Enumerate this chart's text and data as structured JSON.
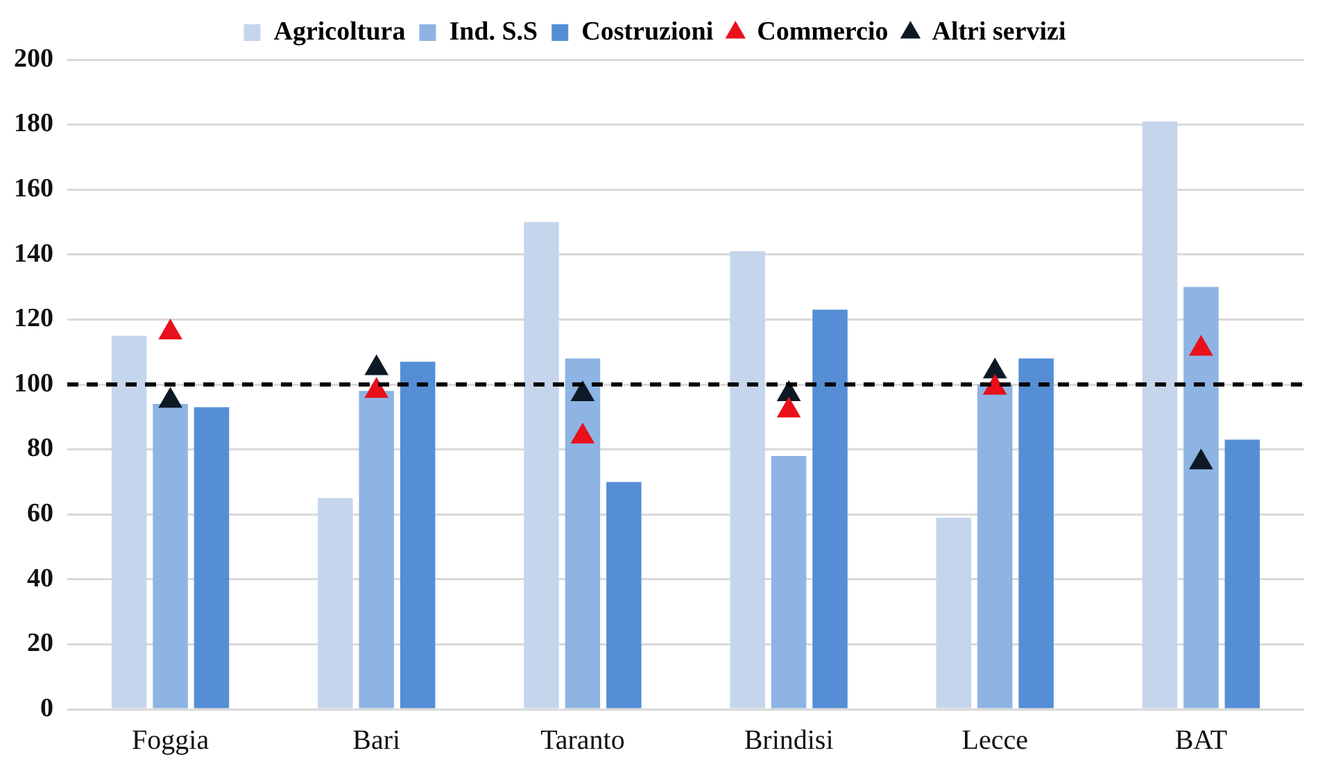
{
  "chart_data": {
    "type": "bar",
    "categories": [
      "Foggia",
      "Bari",
      "Taranto",
      "Brindisi",
      "Lecce",
      "BAT"
    ],
    "series": [
      {
        "name": "Agricoltura",
        "color": "#c5d5ec",
        "values": [
          115,
          65,
          150,
          141,
          59,
          181
        ]
      },
      {
        "name": "Ind. S.S",
        "color": "#8eb4e3",
        "values": [
          94,
          98,
          108,
          78,
          100,
          130
        ]
      },
      {
        "name": "Costruzioni",
        "color": "#558ed5",
        "values": [
          93,
          107,
          70,
          123,
          108,
          83
        ]
      },
      {
        "name": "Commercio",
        "type": "scatter",
        "color": "#e8101b",
        "marker": "triangle",
        "x": [
          "Foggia",
          "Bari",
          "Taranto",
          "Brindisi",
          "Lecce",
          "BAT"
        ],
        "values": [
          116,
          98,
          84,
          92,
          99,
          111
        ]
      },
      {
        "name": "Altri servizi",
        "type": "scatter",
        "color": "#0d1a26",
        "marker": "triangle",
        "x": [
          "Foggia",
          "Bari",
          "Taranto",
          "Brindisi",
          "Lecce",
          "BAT"
        ],
        "values": [
          95,
          105,
          97,
          97,
          104,
          76
        ]
      }
    ],
    "ylim": [
      0,
      200
    ],
    "yticks": [
      0,
      20,
      40,
      60,
      80,
      100,
      120,
      140,
      160,
      180,
      200
    ],
    "grid": "y",
    "legend": "top",
    "ref_lines": [
      {
        "axis": "y",
        "value": 100,
        "color": "#000000",
        "line_style": "dashed"
      }
    ]
  }
}
